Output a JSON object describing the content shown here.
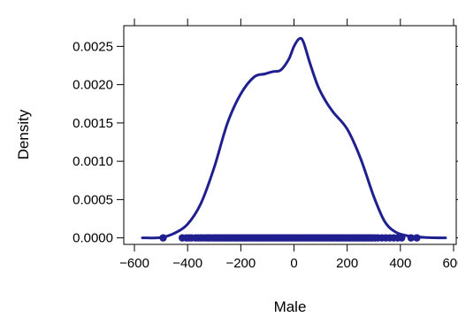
{
  "chart_data": {
    "type": "line",
    "xlabel": "Male",
    "ylabel": "Density",
    "xlim": [
      -640,
      610
    ],
    "ylim": [
      -8.5e-05,
      0.00277
    ],
    "x_ticks": [
      -600,
      -400,
      -200,
      0,
      200,
      400,
      600
    ],
    "y_ticks": [
      0.0,
      0.0005,
      0.001,
      0.0015,
      0.002,
      0.0025
    ],
    "x_tick_labels": [
      "−600",
      "−400",
      "−200",
      "0",
      "200",
      "400",
      "600"
    ],
    "y_tick_labels": [
      "0.0000",
      "0.0005",
      "0.0010",
      "0.0015",
      "0.0020",
      "0.0025"
    ],
    "grid": false,
    "colors": {
      "series": "#1f1f8f"
    },
    "series": [
      {
        "kind": "density-curve",
        "points": [
          [
            -570,
            0.0
          ],
          [
            -500,
            5e-06
          ],
          [
            -450,
            6e-05
          ],
          [
            -400,
            0.00018
          ],
          [
            -350,
            0.00045
          ],
          [
            -300,
            0.00092
          ],
          [
            -250,
            0.0015
          ],
          [
            -200,
            0.00188
          ],
          [
            -150,
            0.0021
          ],
          [
            -110,
            0.00214
          ],
          [
            -80,
            0.00217
          ],
          [
            -50,
            0.00219
          ],
          [
            -20,
            0.00233
          ],
          [
            0,
            0.0025
          ],
          [
            20,
            0.0026
          ],
          [
            35,
            0.00256
          ],
          [
            60,
            0.00228
          ],
          [
            90,
            0.00198
          ],
          [
            120,
            0.00178
          ],
          [
            150,
            0.00163
          ],
          [
            200,
            0.00142
          ],
          [
            250,
            0.00104
          ],
          [
            300,
            0.00054
          ],
          [
            340,
            0.00022
          ],
          [
            380,
            8e-05
          ],
          [
            430,
            2.5e-05
          ],
          [
            500,
            5e-06
          ],
          [
            570,
            0.0
          ]
        ]
      },
      {
        "kind": "rug-points",
        "y": 0.0,
        "x": [
          -492,
          -420,
          -405,
          -395,
          -385,
          -370,
          -360,
          -350,
          -340,
          -330,
          -322,
          -315,
          -305,
          -298,
          -290,
          -282,
          -275,
          -268,
          -260,
          -252,
          -245,
          -238,
          -230,
          -222,
          -215,
          -208,
          -200,
          -192,
          -185,
          -178,
          -170,
          -162,
          -155,
          -148,
          -140,
          -132,
          -125,
          -118,
          -110,
          -102,
          -95,
          -88,
          -80,
          -72,
          -65,
          -58,
          -50,
          -42,
          -35,
          -28,
          -20,
          -12,
          -5,
          3,
          10,
          18,
          25,
          32,
          40,
          48,
          55,
          62,
          70,
          78,
          85,
          92,
          100,
          108,
          115,
          122,
          130,
          138,
          145,
          152,
          160,
          168,
          175,
          182,
          190,
          198,
          205,
          212,
          220,
          228,
          235,
          242,
          250,
          258,
          265,
          272,
          280,
          288,
          295,
          305,
          315,
          330,
          345,
          360,
          375,
          390,
          405,
          440,
          462
        ]
      }
    ]
  }
}
